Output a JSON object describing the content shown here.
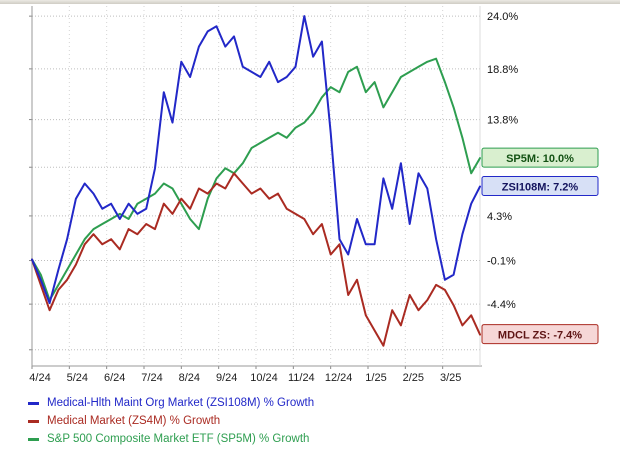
{
  "chart_data": {
    "type": "line",
    "x_labels": [
      "4/24",
      "5/24",
      "6/24",
      "7/24",
      "8/24",
      "9/24",
      "10/24",
      "11/24",
      "12/24",
      "1/25",
      "2/25",
      "3/25"
    ],
    "y_ticks": [
      {
        "value": 24.0,
        "label": "24.0%"
      },
      {
        "value": 18.8,
        "label": "18.8%"
      },
      {
        "value": 13.8,
        "label": "13.8%"
      },
      {
        "value": 4.3,
        "label": "4.3%"
      },
      {
        "value": -0.1,
        "label": "-0.1%"
      },
      {
        "value": -4.4,
        "label": "-4.4%"
      }
    ],
    "y_gridlines": [
      24.0,
      18.8,
      13.8,
      9.1,
      4.3,
      -0.1,
      -4.4,
      -8.9
    ],
    "ylim": [
      -10.5,
      25.0
    ],
    "grid": "dotted",
    "legend_position": "bottom",
    "series": [
      {
        "name": "ZSI108M",
        "label": "Medical-Hlth Maint Org Market (ZSI108M) % Growth",
        "color": "#2228c8",
        "values": [
          0.0,
          -2.0,
          -4.3,
          -1.0,
          2.0,
          6.0,
          7.5,
          6.5,
          5.0,
          5.5,
          4.0,
          5.5,
          4.5,
          5.0,
          9.0,
          16.5,
          13.5,
          19.5,
          18.0,
          21.0,
          22.5,
          23.0,
          21.0,
          22.0,
          19.0,
          18.5,
          18.0,
          19.5,
          17.5,
          18.0,
          19.0,
          24.0,
          20.0,
          21.5,
          12.5,
          2.0,
          0.5,
          4.0,
          1.5,
          1.5,
          8.0,
          5.0,
          9.5,
          3.5,
          8.5,
          7.0,
          2.0,
          -2.0,
          -1.5,
          2.5,
          5.5,
          7.2
        ]
      },
      {
        "name": "ZS4M",
        "label": "Medical Market (ZS4M) % Growth",
        "color": "#aa2b22",
        "values": [
          0.0,
          -2.5,
          -5.0,
          -3.0,
          -2.0,
          -0.5,
          1.5,
          2.5,
          1.5,
          2.0,
          1.0,
          3.0,
          2.5,
          3.5,
          3.0,
          5.5,
          4.5,
          6.0,
          5.0,
          7.0,
          6.5,
          7.5,
          7.0,
          8.5,
          7.5,
          6.5,
          7.0,
          6.0,
          6.5,
          5.0,
          4.5,
          4.0,
          2.5,
          3.5,
          0.5,
          1.5,
          -3.5,
          -2.0,
          -5.5,
          -7.0,
          -8.5,
          -5.0,
          -6.5,
          -3.5,
          -5.0,
          -4.0,
          -2.5,
          -3.0,
          -4.5,
          -6.5,
          -5.5,
          -7.4
        ]
      },
      {
        "name": "SP5M",
        "label": "S&P 500 Composite Market ETF (SP5M) % Growth",
        "color": "#2e9e50",
        "values": [
          0.0,
          -1.5,
          -4.0,
          -2.5,
          -1.0,
          0.5,
          2.0,
          3.0,
          3.5,
          4.0,
          4.5,
          4.0,
          5.5,
          6.0,
          6.5,
          7.5,
          7.0,
          5.5,
          4.0,
          3.0,
          6.0,
          8.0,
          9.0,
          8.5,
          9.5,
          11.0,
          11.5,
          12.0,
          12.5,
          12.0,
          13.0,
          13.5,
          14.5,
          16.0,
          17.0,
          16.5,
          18.5,
          19.0,
          16.5,
          17.5,
          15.0,
          16.5,
          18.0,
          18.5,
          19.0,
          19.5,
          19.8,
          17.5,
          15.0,
          12.0,
          8.5,
          10.0
        ]
      }
    ],
    "callouts": [
      {
        "text": "SP5M: 10.0%",
        "value": 10.0,
        "bg": "#d9efcf",
        "border": "#2e9e50",
        "color": "#145214"
      },
      {
        "text": "ZSI108M: 7.2%",
        "value": 7.2,
        "bg": "#d7e0f6",
        "border": "#2228c8",
        "color": "#14145e"
      },
      {
        "text": "MDCL ZS: -7.4%",
        "value": -7.4,
        "bg": "#f6d7d7",
        "border": "#aa2b22",
        "color": "#5e1414"
      }
    ]
  }
}
